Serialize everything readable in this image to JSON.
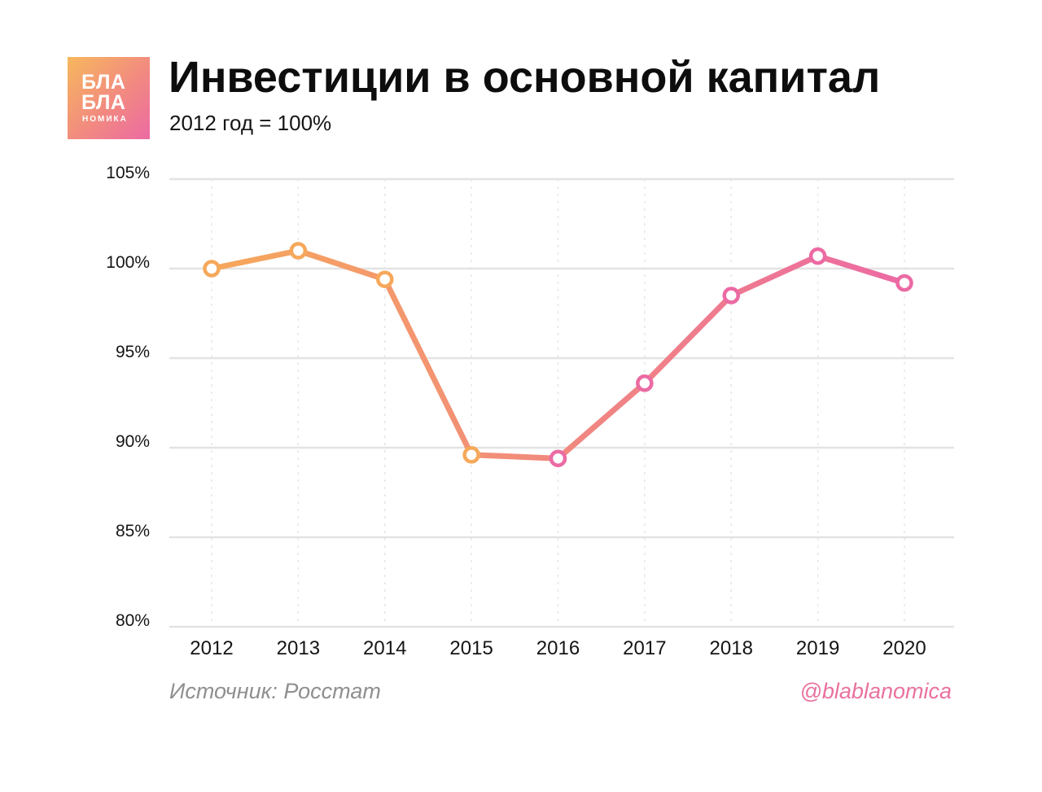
{
  "logo": {
    "line1": "БЛА",
    "line2": "БЛА",
    "line3": "НОМИКА"
  },
  "header": {
    "title": "Инвестиции в основной капитал",
    "subtitle": "2012 год = 100%"
  },
  "footer": {
    "source": "Источник: Росстат",
    "handle": "@blablanomica"
  },
  "colors": {
    "line_start": "#f6a85a",
    "line_end": "#ec6aa3",
    "grid": "#e3e3e3",
    "marker_fill": "#ffffff"
  },
  "chart_data": {
    "type": "line",
    "title": "Инвестиции в основной капитал",
    "subtitle": "2012 год = 100%",
    "categories": [
      "2012",
      "2013",
      "2014",
      "2015",
      "2016",
      "2017",
      "2018",
      "2019",
      "2020"
    ],
    "values": [
      100.0,
      101.0,
      99.4,
      89.6,
      89.4,
      93.6,
      98.5,
      100.7,
      99.2
    ],
    "ylim": [
      80,
      105
    ],
    "yticks": [
      80,
      85,
      90,
      95,
      100,
      105
    ],
    "ytick_labels": [
      "80%",
      "85%",
      "90%",
      "95%",
      "100%",
      "105%"
    ],
    "grid": true,
    "legend": "none"
  }
}
